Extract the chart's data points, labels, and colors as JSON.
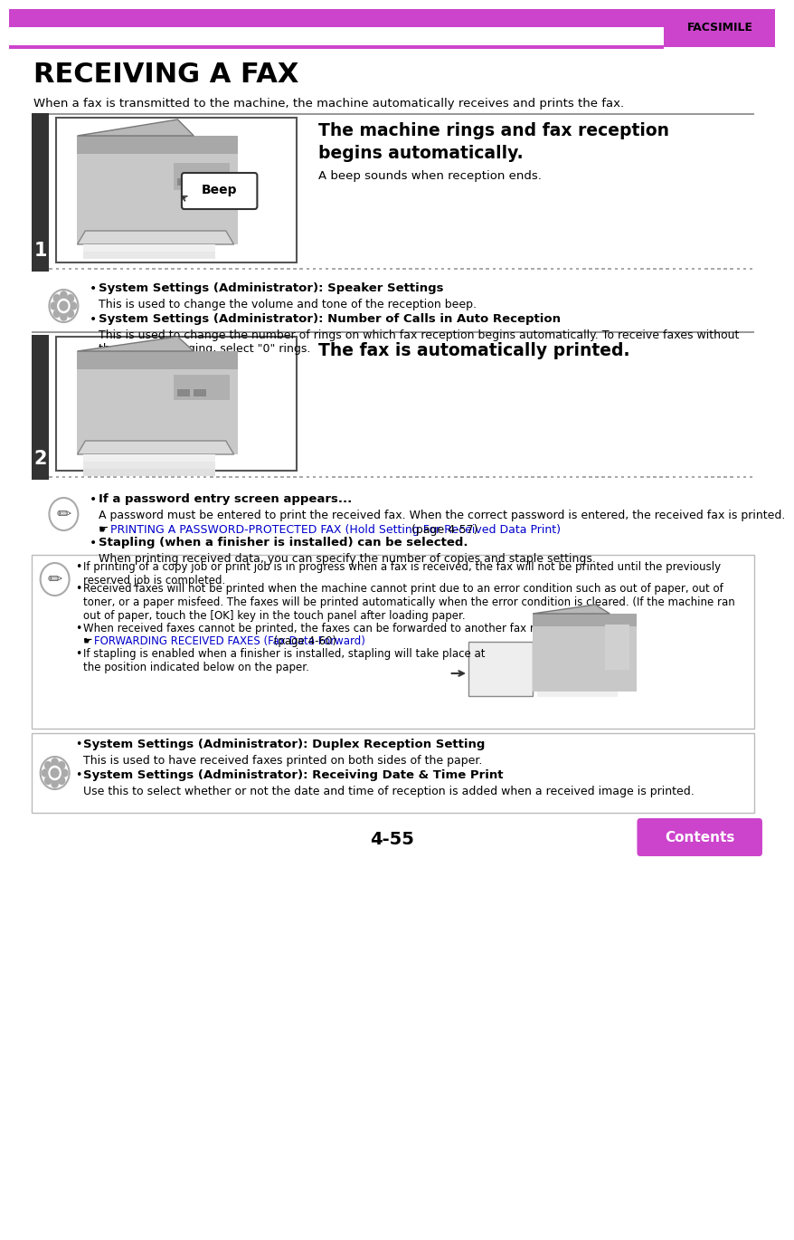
{
  "page_bg": "#ffffff",
  "header_bar_color": "#cc44cc",
  "header_text": "FACSIMILE",
  "title": "RECEIVING A FAX",
  "subtitle": "When a fax is transmitted to the machine, the machine automatically receives and prints the fax.",
  "step1_title": "The machine rings and fax reception\nbegins automatically.",
  "step1_sub": "A beep sounds when reception ends.",
  "step1_note1_bold": "System Settings (Administrator): Speaker Settings",
  "step1_note1_text": "This is used to change the volume and tone of the reception beep.",
  "step1_note2_bold": "System Settings (Administrator): Number of Calls in Auto Reception",
  "step1_note2_text": "This is used to change the number of rings on which fax reception begins automatically. To receive faxes without\nthe machine ringing, select \"0\" rings.",
  "step2_title": "The fax is automatically printed.",
  "step2_note1_bold": "If a password entry screen appears...",
  "step2_note1_text": "A password must be entered to print the received fax. When the correct password is entered, the received fax is printed.",
  "step2_note1_link": "PRINTING A PASSWORD-PROTECTED FAX (Hold Setting For Received Data Print)",
  "step2_note1_link_text": " (page 4-57)",
  "step2_note2_bold": "Stapling (when a finisher is installed) can be selected.",
  "step2_note2_text": "When printing received data, you can specify the number of copies and staple settings.",
  "note1_text1": "If printing of a copy job or print job is in progress when a fax is received, the fax will not be printed until the previously\nreserved job is completed.",
  "note1_text2": "Received faxes will not be printed when the machine cannot print due to an error condition such as out of paper, out of\ntoner, or a paper misfeed. The faxes will be printed automatically when the error condition is cleared. (If the machine ran\nout of paper, touch the [OK] key in the touch panel after loading paper.",
  "note1_text3": "When received faxes cannot be printed, the faxes can be forwarded to another fax machine.",
  "note1_link": "FORWARDING RECEIVED FAXES (Fax Data Forward)",
  "note1_link_text": " (page 4-60)",
  "note1_text4": "If stapling is enabled when a finisher is installed, stapling will take place at\nthe position indicated below on the paper.",
  "note2_text1_bold": "System Settings (Administrator): Duplex Reception Setting",
  "note2_text1": "This is used to have received faxes printed on both sides of the paper.",
  "note2_text2_bold": "System Settings (Administrator): Receiving Date & Time Print",
  "note2_text2": "Use this to select whether or not the date and time of reception is added when a received image is printed.",
  "page_num": "4-55",
  "contents_btn": "Contents",
  "contents_color": "#cc44cc",
  "dark_bar_color": "#333333",
  "step_num_color": "#ffffff",
  "link_color": "#0000cc"
}
